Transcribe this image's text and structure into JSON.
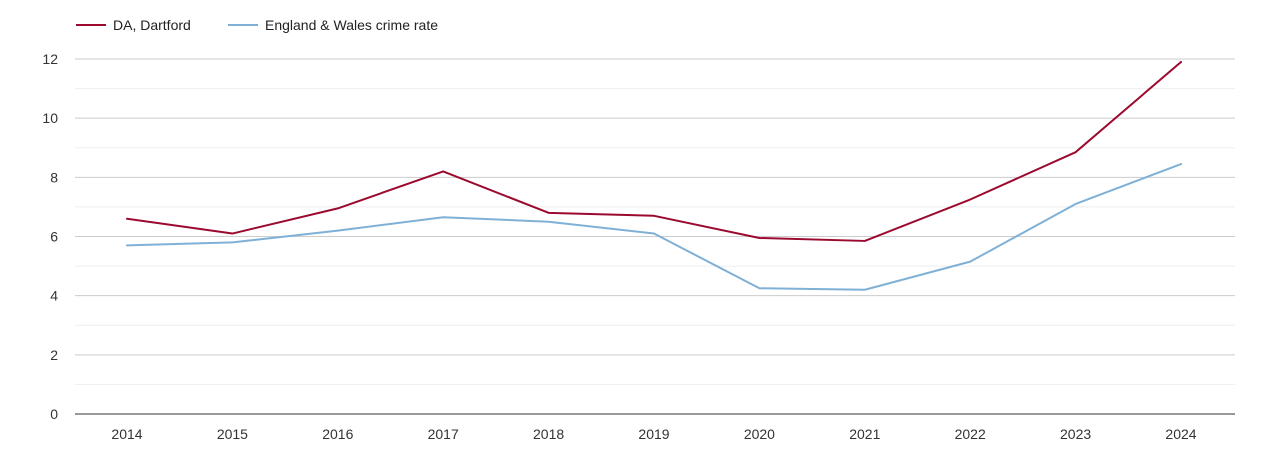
{
  "chart_data": {
    "type": "line",
    "title": "",
    "xlabel": "",
    "ylabel": "",
    "ylim": [
      0,
      12
    ],
    "yticks": [
      0,
      2,
      4,
      6,
      8,
      10,
      12
    ],
    "minor_grid": true,
    "legend_position": "top-left",
    "x": [
      "2014",
      "2015",
      "2016",
      "2017",
      "2018",
      "2019",
      "2020",
      "2021",
      "2022",
      "2023",
      "2024"
    ],
    "series": [
      {
        "name": "DA, Dartford",
        "color": "#9b0a2e",
        "values": [
          6.6,
          6.1,
          6.95,
          8.2,
          6.8,
          6.7,
          5.95,
          5.85,
          7.25,
          8.85,
          11.9
        ]
      },
      {
        "name": "England & Wales crime rate",
        "color": "#7fb0d6",
        "values": [
          5.7,
          5.8,
          6.2,
          6.65,
          6.5,
          6.1,
          4.25,
          4.2,
          5.15,
          7.1,
          8.45
        ]
      }
    ]
  }
}
